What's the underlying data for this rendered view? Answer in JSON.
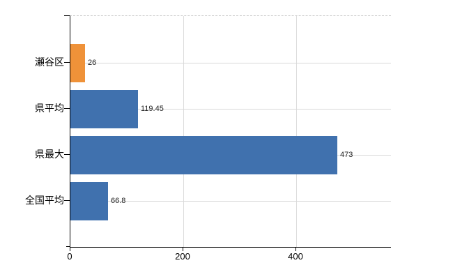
{
  "chart_data": {
    "type": "bar",
    "orientation": "horizontal",
    "title": "",
    "xlabel": "",
    "ylabel": "",
    "categories": [
      "瀬谷区",
      "県平均",
      "県最大",
      "全国平均"
    ],
    "values": [
      26,
      119.45,
      473,
      66.8
    ],
    "value_labels": [
      "26",
      "119.45",
      "473",
      "66.8"
    ],
    "bar_colors": [
      "#EF9239",
      "#4071AE",
      "#4071AE",
      "#4071AE"
    ],
    "x_ticks": [
      0,
      200,
      400
    ],
    "x_tick_labels": [
      "0",
      "200",
      "400"
    ],
    "xlim": [
      0,
      568
    ],
    "grid": true,
    "legend": false,
    "colors": {
      "highlight_bar": "#EF9239",
      "default_bar": "#4071AE",
      "axis": "#000000",
      "gridline": "#dcdcdc",
      "top_border": "#cccccc",
      "label_text": "#000000",
      "value_text": "#222222"
    }
  }
}
